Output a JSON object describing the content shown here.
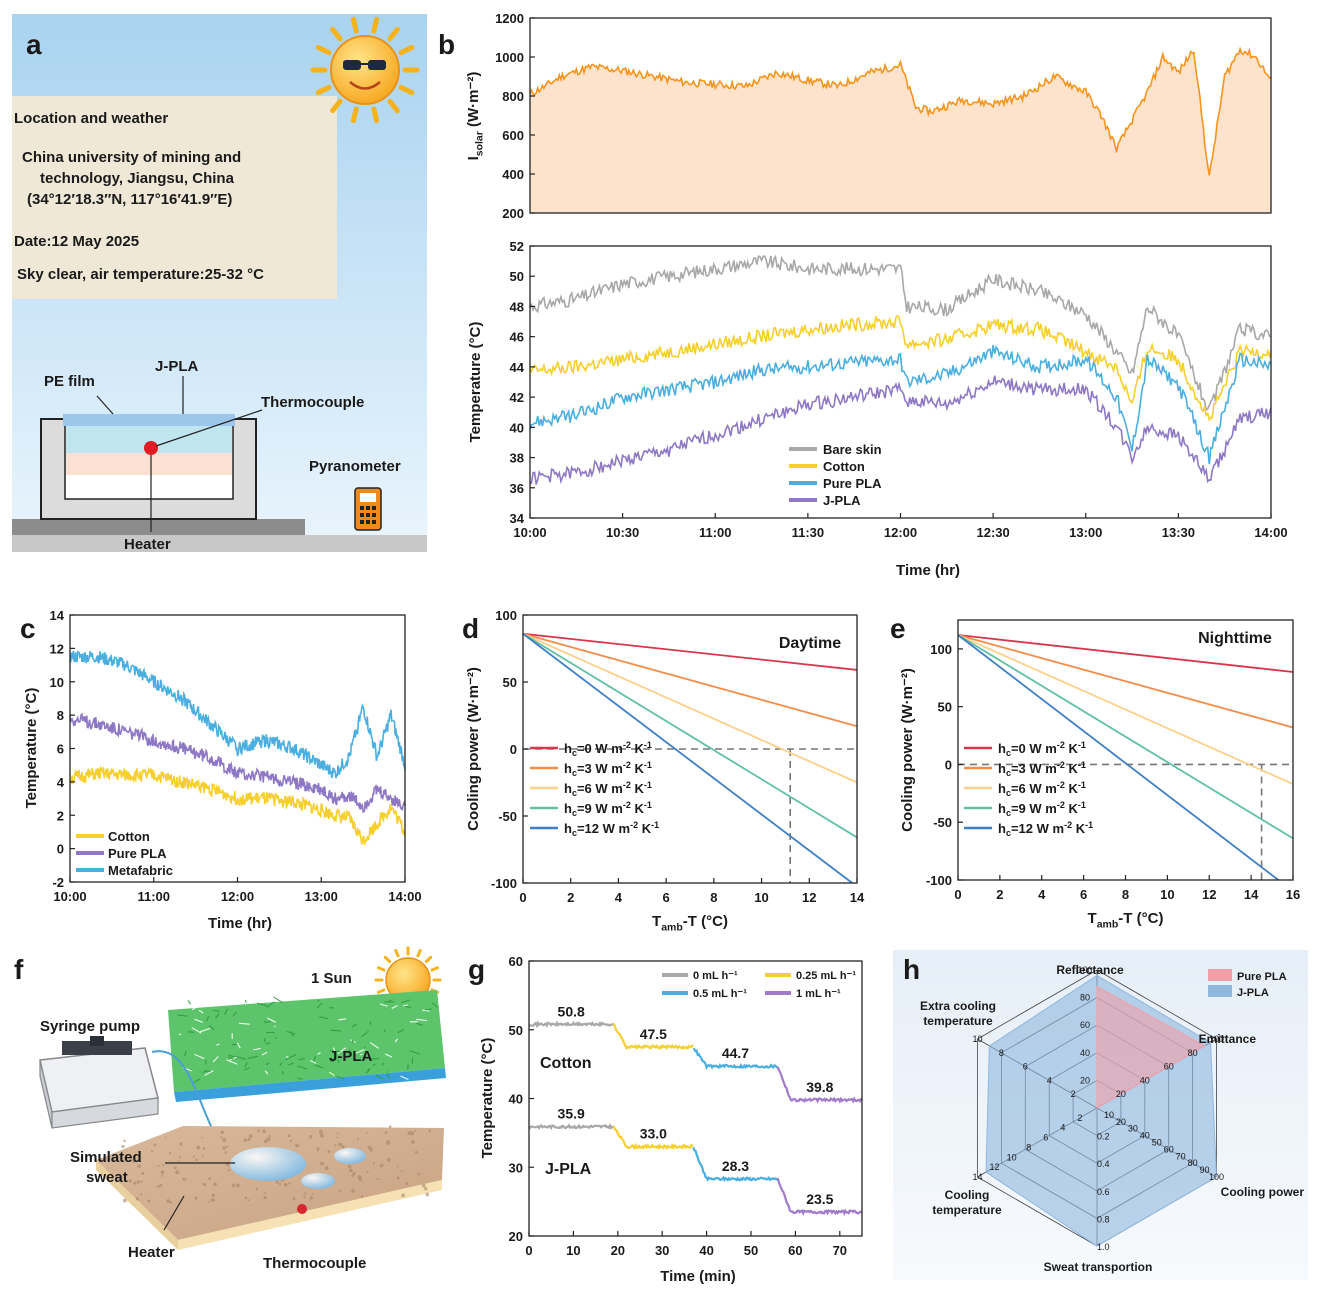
{
  "figure": {
    "panel_a": {
      "letter": "a",
      "info_title": "Location and weather",
      "info_line1": "China university of mining and",
      "info_line2": "technology, Jiangsu, China",
      "info_line3": "(34°12′18.3″N, 117°16′41.9″E)",
      "date": "Date:12 May 2025",
      "sky": "Sky clear, air temperature:25-32 °C",
      "label_pe": "PE film",
      "label_jpla": "J-PLA",
      "label_thermo": "Thermocouple",
      "label_pyrano": "Pyranometer",
      "label_heater": "Heater"
    },
    "panel_b": {
      "letter": "b"
    },
    "panel_c": {
      "letter": "c"
    },
    "panel_d": {
      "letter": "d",
      "corner": "Daytime"
    },
    "panel_e": {
      "letter": "e",
      "corner": "Nighttime"
    },
    "panel_f": {
      "letter": "f",
      "sun_label": "1 Sun",
      "label_pump": "Syringe pump",
      "label_jpla": "J-PLA",
      "label_sweat1": "Simulated",
      "label_sweat2": "sweat",
      "label_heater": "Heater",
      "label_thermo": "Thermocouple"
    },
    "panel_g": {
      "letter": "g",
      "label_cotton": "Cotton",
      "label_jpla": "J-PLA"
    },
    "panel_h": {
      "letter": "h"
    }
  },
  "chart_data": [
    {
      "id": "b_top",
      "type": "area",
      "ylabel_main": "I",
      "ylabel_sub": "solar",
      "ylabel_unit": " (W·m⁻²)",
      "ylim": [
        200,
        1200
      ],
      "yticks": [
        "200",
        "400",
        "600",
        "800",
        "1000",
        "1200"
      ],
      "xlim": [
        0,
        240
      ],
      "x": [
        0,
        5,
        10,
        20,
        30,
        40,
        50,
        60,
        70,
        80,
        90,
        100,
        110,
        120,
        125,
        130,
        140,
        150,
        160,
        165,
        170,
        180,
        185,
        190,
        200,
        205,
        210,
        215,
        220,
        225,
        230,
        235,
        240
      ],
      "series": [
        {
          "name": "Isolar",
          "color": "#f7941d",
          "values": [
            810,
            850,
            900,
            950,
            930,
            900,
            870,
            860,
            850,
            920,
            880,
            850,
            920,
            960,
            740,
            720,
            780,
            760,
            800,
            850,
            900,
            820,
            700,
            530,
            820,
            1000,
            920,
            1040,
            380,
            900,
            1040,
            1000,
            880
          ]
        }
      ]
    },
    {
      "id": "b_bottom",
      "type": "line",
      "ylabel": "Temperature (°C)",
      "xlabel": "Time (hr)",
      "ylim": [
        34,
        52
      ],
      "yticks": [
        "34",
        "36",
        "38",
        "40",
        "42",
        "44",
        "46",
        "48",
        "50",
        "52"
      ],
      "xlim": [
        0,
        240
      ],
      "xticks": [
        "10:00",
        "10:30",
        "11:00",
        "11:30",
        "12:00",
        "12:30",
        "13:00",
        "13:30",
        "14:00"
      ],
      "x": [
        0,
        15,
        30,
        45,
        60,
        75,
        90,
        105,
        120,
        122,
        135,
        150,
        165,
        180,
        190,
        195,
        200,
        210,
        220,
        230,
        240
      ],
      "series": [
        {
          "name": "Bare skin",
          "color": "#a8a8a8",
          "values": [
            48,
            48.5,
            49.5,
            50,
            50.5,
            51,
            50.5,
            50.5,
            50.5,
            48,
            47.8,
            49.8,
            49,
            47.5,
            45,
            43.5,
            48,
            46,
            41,
            46.5,
            46
          ]
        },
        {
          "name": "Cotton",
          "color": "#f6cf2c",
          "values": [
            43.7,
            44,
            44.5,
            45,
            45.5,
            46,
            46.5,
            46.8,
            47,
            45.5,
            45.8,
            46.8,
            46.5,
            45,
            44,
            41.5,
            45.3,
            44.5,
            40.5,
            45,
            45
          ]
        },
        {
          "name": "Pure PLA",
          "color": "#4aaee0",
          "values": [
            40.3,
            40.8,
            42,
            42.5,
            43,
            43.8,
            44,
            44.3,
            44.5,
            43,
            43.5,
            45,
            44,
            44.5,
            42,
            38.5,
            44.5,
            42.8,
            38,
            44.5,
            44
          ]
        },
        {
          "name": "J-PLA",
          "color": "#8e78c6",
          "values": [
            36.6,
            37,
            37.8,
            38.5,
            39.5,
            40.5,
            41.5,
            42,
            42.5,
            41.8,
            41.5,
            43,
            42.5,
            42.5,
            40,
            38,
            40,
            39.5,
            36.5,
            40.5,
            41
          ]
        }
      ]
    },
    {
      "id": "c",
      "type": "line",
      "ylabel": "Temperature (°C)",
      "xlabel": "Time (hr)",
      "ylim": [
        -2,
        14
      ],
      "yticks": [
        "-2",
        "0",
        "2",
        "4",
        "6",
        "8",
        "10",
        "12",
        "14"
      ],
      "xlim": [
        0,
        240
      ],
      "xticks": [
        "10:00",
        "11:00",
        "12:00",
        "13:00",
        "14:00"
      ],
      "x": [
        0,
        20,
        40,
        60,
        80,
        100,
        120,
        140,
        160,
        180,
        190,
        200,
        210,
        220,
        230,
        240
      ],
      "series": [
        {
          "name": "Cotton",
          "color": "#f6cf2c",
          "values": [
            4.2,
            4.5,
            4.4,
            4.4,
            4,
            3.6,
            3,
            3,
            2.8,
            2.3,
            2,
            1.8,
            0.5,
            1.5,
            2.5,
            1
          ]
        },
        {
          "name": "Pure PLA",
          "color": "#8e78c6",
          "values": [
            7.8,
            7.5,
            7,
            6.5,
            6,
            5.5,
            4.5,
            4.3,
            4,
            3.5,
            3,
            3.2,
            2.5,
            3.5,
            3,
            2.5
          ]
        },
        {
          "name": "Metafabric",
          "color": "#4aaee0",
          "values": [
            11.5,
            11.5,
            11,
            10,
            9,
            7.5,
            6,
            6.5,
            6,
            5,
            4.5,
            5.5,
            8.5,
            5.5,
            8,
            5
          ]
        }
      ]
    },
    {
      "id": "d",
      "type": "line",
      "ylabel": "Cooling power (W·m⁻²)",
      "xlabel_main": "T",
      "xlabel_sub": "amb",
      "xlabel_unit": "-T (°C)",
      "ylim": [
        -100,
        100
      ],
      "yticks": [
        "-100",
        "-50",
        "0",
        "50",
        "100"
      ],
      "xlim": [
        0,
        14
      ],
      "xticks": [
        "0",
        "2",
        "4",
        "6",
        "8",
        "10",
        "12",
        "14"
      ],
      "series": [
        {
          "name": "hc=0",
          "h": "0",
          "color": "#d8364b",
          "x0": 0,
          "y0": 86,
          "x1": 14,
          "y1": 59
        },
        {
          "name": "hc=3",
          "h": "3",
          "color": "#f58d4a",
          "x0": 0,
          "y0": 86,
          "x1": 14,
          "y1": 17
        },
        {
          "name": "hc=6",
          "h": "6",
          "color": "#fbd08a",
          "x0": 0,
          "y0": 86,
          "x1": 14,
          "y1": -25
        },
        {
          "name": "hc=9",
          "h": "9",
          "color": "#61bfa6",
          "x0": 0,
          "y0": 86,
          "x1": 14,
          "y1": -66
        },
        {
          "name": "hc=12",
          "h": "12",
          "color": "#3f7fc4",
          "x0": 0,
          "y0": 86,
          "x1": 13.8,
          "y1": -100
        }
      ],
      "marker_x": 11.2
    },
    {
      "id": "e",
      "type": "line",
      "ylabel": "Cooling power (W·m⁻²)",
      "xlabel_main": "T",
      "xlabel_sub": "amb",
      "xlabel_unit": "-T (°C)",
      "ylim": [
        -100,
        125
      ],
      "yticks": [
        "-100",
        "-50",
        "0",
        "50",
        "100"
      ],
      "xlim": [
        0,
        16
      ],
      "xticks": [
        "0",
        "2",
        "4",
        "6",
        "8",
        "10",
        "12",
        "14",
        "16"
      ],
      "series": [
        {
          "name": "hc=0",
          "h": "0",
          "color": "#d8364b",
          "x0": 0,
          "y0": 112,
          "x1": 16,
          "y1": 80
        },
        {
          "name": "hc=3",
          "h": "3",
          "color": "#f58d4a",
          "x0": 0,
          "y0": 112,
          "x1": 16,
          "y1": 32
        },
        {
          "name": "hc=6",
          "h": "6",
          "color": "#fbd08a",
          "x0": 0,
          "y0": 112,
          "x1": 16,
          "y1": -17
        },
        {
          "name": "hc=9",
          "h": "9",
          "color": "#61bfa6",
          "x0": 0,
          "y0": 112,
          "x1": 16,
          "y1": -64
        },
        {
          "name": "hc=12",
          "h": "12",
          "color": "#3f7fc4",
          "x0": 0,
          "y0": 112,
          "x1": 15.3,
          "y1": -100
        }
      ],
      "marker_x": 14.5
    },
    {
      "id": "g",
      "type": "line",
      "ylabel": "Temperature (°C)",
      "xlabel": "Time (min)",
      "ylim": [
        20,
        60
      ],
      "yticks": [
        "20",
        "30",
        "40",
        "50",
        "60"
      ],
      "xlim": [
        0,
        75
      ],
      "xticks": [
        "0",
        "10",
        "20",
        "30",
        "40",
        "50",
        "60",
        "70"
      ],
      "legend": [
        {
          "name": "0 mL h⁻¹",
          "color": "#a8a8a8"
        },
        {
          "name": "0.25 mL h⁻¹",
          "color": "#f6cf2c"
        },
        {
          "name": "0.5 mL h⁻¹",
          "color": "#4aaee0"
        },
        {
          "name": "1 mL h⁻¹",
          "color": "#a07acb"
        }
      ],
      "cotton_levels": [
        50.8,
        47.5,
        44.7,
        39.8
      ],
      "cotton_labels": [
        "50.8",
        "47.5",
        "44.7",
        "39.8"
      ],
      "jpla_levels": [
        35.9,
        33.0,
        28.3,
        23.5
      ],
      "jpla_labels": [
        "35.9",
        "33.0",
        "28.3",
        "23.5"
      ],
      "segments": [
        [
          0,
          19
        ],
        [
          19,
          37
        ],
        [
          37,
          56
        ],
        [
          56,
          75
        ]
      ]
    },
    {
      "id": "h",
      "type": "radar",
      "axes": [
        {
          "name": "Reflectance",
          "ticks": [
            "0",
            "20",
            "40",
            "60",
            "80",
            "100"
          ]
        },
        {
          "name": "Emittance",
          "ticks": [
            "0",
            "20",
            "40",
            "60",
            "80",
            "100"
          ]
        },
        {
          "name": "Cooling power",
          "ticks": [
            "0",
            "10",
            "20",
            "30",
            "40",
            "50",
            "60",
            "70",
            "80",
            "90",
            "100"
          ]
        },
        {
          "name": "Sweat transportion",
          "ticks": [
            "0",
            "0.2",
            "0.4",
            "0.6",
            "0.8",
            "1.0"
          ]
        },
        {
          "name": "Cooling temperature",
          "ticks": [
            "0",
            "2",
            "4",
            "6",
            "8",
            "10",
            "12",
            "14"
          ]
        },
        {
          "name": "Extra cooling temperature",
          "line1": "Extra cooling",
          "line2": "temperature",
          "ticks": [
            "0",
            "2",
            "4",
            "6",
            "8",
            "10"
          ]
        }
      ],
      "axis_max": [
        100,
        100,
        100,
        1.0,
        14,
        10
      ],
      "series": [
        {
          "name": "Pure PLA",
          "color": "#f2a0a8",
          "values": [
            88,
            90,
            0,
            0,
            0,
            0
          ]
        },
        {
          "name": "J-PLA",
          "color": "#8fb8de",
          "values": [
            96,
            95,
            100,
            1.0,
            13,
            9
          ]
        }
      ]
    }
  ]
}
